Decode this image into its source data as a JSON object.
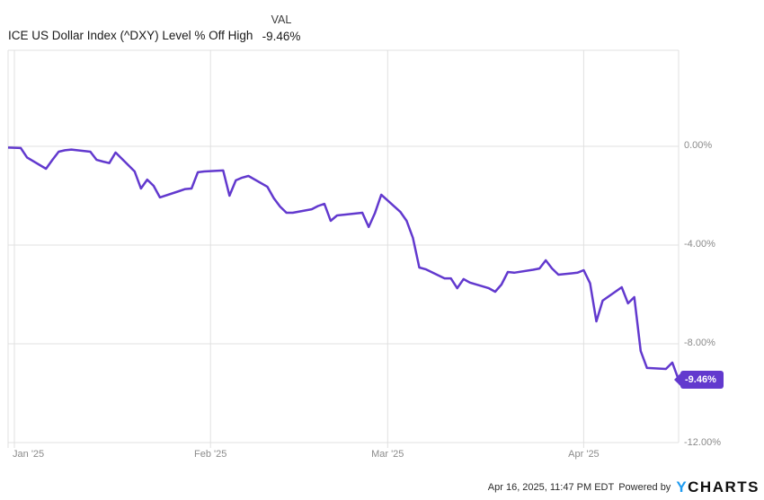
{
  "header": {
    "title": "ICE US Dollar Index (^DXY) Level % Off High",
    "val_label": "VAL",
    "val_value": "-9.46%"
  },
  "footer": {
    "timestamp": "Apr 16, 2025, 11:47 PM EDT",
    "powered_by": "Powered by",
    "logo_y": "Y",
    "logo_charts": "CHARTS"
  },
  "chart_data": {
    "type": "line",
    "title": "ICE US Dollar Index (^DXY) Level % Off High",
    "xlabel": "",
    "ylabel": "% Off High",
    "grid": true,
    "legend_position": "none",
    "line_color": "#6239CE",
    "grid_color": "#e0e0e0",
    "axis_label_color": "#8b8b8b",
    "xlim": [
      "2024-12-31",
      "2025-04-16"
    ],
    "ylim": [
      -12,
      3.89
    ],
    "y_ticks": [
      {
        "value": 0,
        "label": "0.00%"
      },
      {
        "value": -4,
        "label": "-4.00%"
      },
      {
        "value": -8,
        "label": "-8.00%"
      },
      {
        "value": -12,
        "label": "-12.00%"
      }
    ],
    "x_ticks": [
      {
        "date": "2025-01-01",
        "label": "Jan '25",
        "align": "left"
      },
      {
        "date": "2025-02-01",
        "label": "Feb '25",
        "align": "center"
      },
      {
        "date": "2025-03-01",
        "label": "Mar '25",
        "align": "center"
      },
      {
        "date": "2025-04-01",
        "label": "Apr '25",
        "align": "center"
      }
    ],
    "last_value_badge": "-9.46%",
    "series": [
      {
        "name": "ICE US Dollar Index (^DXY) Level % Off High",
        "color": "#6239CE",
        "points": [
          [
            "2024-12-31",
            -0.05
          ],
          [
            "2025-01-02",
            -0.07
          ],
          [
            "2025-01-03",
            -0.45
          ],
          [
            "2025-01-06",
            -0.91
          ],
          [
            "2025-01-07",
            -0.55
          ],
          [
            "2025-01-08",
            -0.22
          ],
          [
            "2025-01-09",
            -0.16
          ],
          [
            "2025-01-10",
            -0.13
          ],
          [
            "2025-01-13",
            -0.22
          ],
          [
            "2025-01-14",
            -0.55
          ],
          [
            "2025-01-15",
            -0.62
          ],
          [
            "2025-01-16",
            -0.68
          ],
          [
            "2025-01-17",
            -0.25
          ],
          [
            "2025-01-20",
            -1.02
          ],
          [
            "2025-01-21",
            -1.71
          ],
          [
            "2025-01-22",
            -1.35
          ],
          [
            "2025-01-23",
            -1.6
          ],
          [
            "2025-01-24",
            -2.07
          ],
          [
            "2025-01-27",
            -1.82
          ],
          [
            "2025-01-28",
            -1.73
          ],
          [
            "2025-01-29",
            -1.71
          ],
          [
            "2025-01-30",
            -1.05
          ],
          [
            "2025-01-31",
            -1.02
          ],
          [
            "2025-02-03",
            -0.98
          ],
          [
            "2025-02-04",
            -2.0
          ],
          [
            "2025-02-05",
            -1.38
          ],
          [
            "2025-02-06",
            -1.27
          ],
          [
            "2025-02-07",
            -1.2
          ],
          [
            "2025-02-10",
            -1.64
          ],
          [
            "2025-02-11",
            -2.1
          ],
          [
            "2025-02-12",
            -2.44
          ],
          [
            "2025-02-13",
            -2.69
          ],
          [
            "2025-02-14",
            -2.69
          ],
          [
            "2025-02-17",
            -2.55
          ],
          [
            "2025-02-18",
            -2.42
          ],
          [
            "2025-02-19",
            -2.33
          ],
          [
            "2025-02-20",
            -3.02
          ],
          [
            "2025-02-21",
            -2.8
          ],
          [
            "2025-02-24",
            -2.72
          ],
          [
            "2025-02-25",
            -2.69
          ],
          [
            "2025-02-26",
            -3.27
          ],
          [
            "2025-02-27",
            -2.7
          ],
          [
            "2025-02-28",
            -1.96
          ],
          [
            "2025-03-03",
            -2.65
          ],
          [
            "2025-03-04",
            -3.02
          ],
          [
            "2025-03-05",
            -3.71
          ],
          [
            "2025-03-06",
            -4.91
          ],
          [
            "2025-03-07",
            -4.98
          ],
          [
            "2025-03-10",
            -5.35
          ],
          [
            "2025-03-11",
            -5.35
          ],
          [
            "2025-03-12",
            -5.75
          ],
          [
            "2025-03-13",
            -5.38
          ],
          [
            "2025-03-14",
            -5.52
          ],
          [
            "2025-03-17",
            -5.75
          ],
          [
            "2025-03-18",
            -5.89
          ],
          [
            "2025-03-19",
            -5.6
          ],
          [
            "2025-03-20",
            -5.09
          ],
          [
            "2025-03-21",
            -5.12
          ],
          [
            "2025-03-24",
            -5.0
          ],
          [
            "2025-03-25",
            -4.95
          ],
          [
            "2025-03-26",
            -4.62
          ],
          [
            "2025-03-27",
            -4.95
          ],
          [
            "2025-03-28",
            -5.2
          ],
          [
            "2025-03-31",
            -5.12
          ],
          [
            "2025-04-01",
            -5.02
          ],
          [
            "2025-04-02",
            -5.55
          ],
          [
            "2025-04-03",
            -7.09
          ],
          [
            "2025-04-04",
            -6.25
          ],
          [
            "2025-04-07",
            -5.71
          ],
          [
            "2025-04-08",
            -6.36
          ],
          [
            "2025-04-09",
            -6.11
          ],
          [
            "2025-04-10",
            -8.29
          ],
          [
            "2025-04-11",
            -8.98
          ],
          [
            "2025-04-14",
            -9.02
          ],
          [
            "2025-04-15",
            -8.76
          ],
          [
            "2025-04-16",
            -9.46
          ]
        ]
      }
    ]
  }
}
